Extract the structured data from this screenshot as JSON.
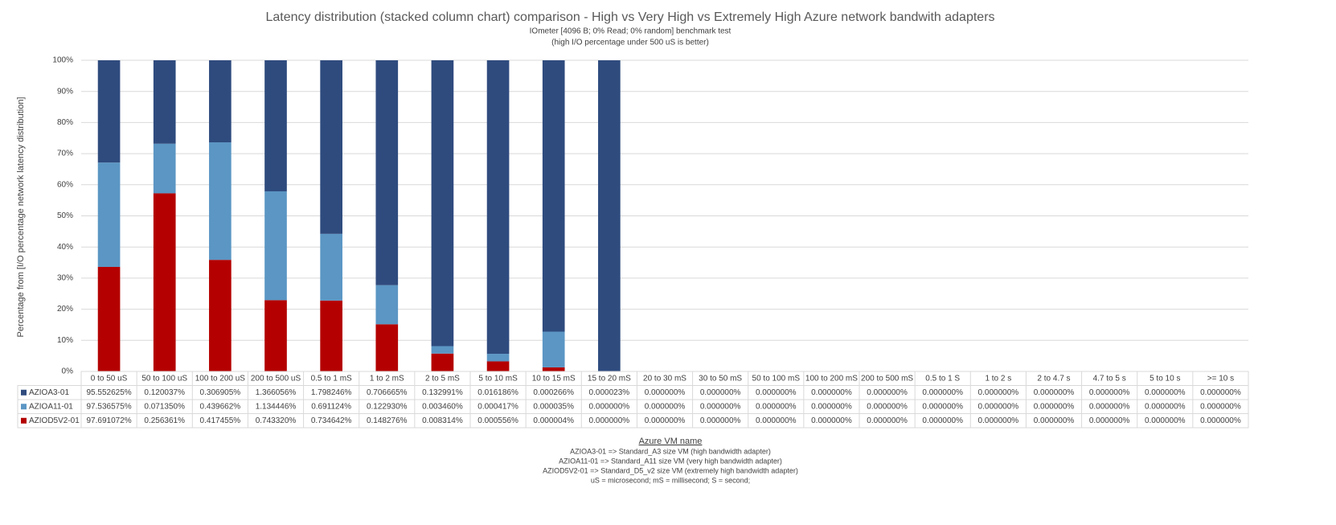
{
  "chart_data": {
    "type": "bar",
    "stacked_percent": true,
    "title": "Latency distribution (stacked column chart) comparison - High vs Very High vs Extremely High Azure network  bandwith adapters",
    "subtitle": [
      "IOmeter [4096 B; 0% Read; 0% random] benchmark test",
      "(high I/O percentage under 500 uS is better)"
    ],
    "y_label": "Percentage from [I/O percentage network latency distribution]",
    "x_label": "Azure VM name",
    "notes": [
      "AZIOA3-01 => Standard_A3 size VM (high bandwidth adapter)",
      "AZIOA11-01 => Standard_A11 size VM (very high bandwidth adapter)",
      "AZIOD5V2-01 => Standard_D5_v2 size VM (extremely high bandwidth adapter)",
      "uS = microsecond; mS = millisecond; S = second;"
    ],
    "categories": [
      "0 to 50 uS",
      "50 to 100 uS",
      "100 to 200 uS",
      "200 to 500 uS",
      "0.5 to 1 mS",
      "1 to 2 mS",
      "2 to 5 mS",
      "5 to 10 mS",
      "10 to 15 mS",
      "15 to 20 mS",
      "20 to 30 mS",
      "30 to 50 mS",
      "50 to 100 mS",
      "100 to 200 mS",
      "200 to 500 mS",
      "0.5 to 1 S",
      "1 to 2 s",
      "2 to 4.7 s",
      "4.7 to 5 s",
      "5 to 10 s",
      ">= 10 s"
    ],
    "ylim": [
      0,
      100
    ],
    "yticks": [
      {
        "value": 0,
        "label": "0%"
      },
      {
        "value": 10,
        "label": "10%"
      },
      {
        "value": 20,
        "label": "20%"
      },
      {
        "value": 30,
        "label": "30%"
      },
      {
        "value": 40,
        "label": "40%"
      },
      {
        "value": 50,
        "label": "50%"
      },
      {
        "value": 60,
        "label": "60%"
      },
      {
        "value": 70,
        "label": "70%"
      },
      {
        "value": 80,
        "label": "80%"
      },
      {
        "value": 90,
        "label": "90%"
      },
      {
        "value": 100,
        "label": "100%"
      }
    ],
    "grid": true,
    "series": [
      {
        "name": "AZIOA3-01",
        "color": "#2f4b7e",
        "values": [
          95.552625,
          0.120037,
          0.306905,
          1.366056,
          1.798246,
          0.706665,
          0.132991,
          0.016186,
          0.000266,
          2.3e-05,
          0,
          0,
          0,
          0,
          0,
          0,
          0,
          0,
          0,
          0,
          0
        ],
        "value_labels": [
          "95.552625%",
          "0.120037%",
          "0.306905%",
          "1.366056%",
          "1.798246%",
          "0.706665%",
          "0.132991%",
          "0.016186%",
          "0.000266%",
          "0.000023%",
          "0.000000%",
          "0.000000%",
          "0.000000%",
          "0.000000%",
          "0.000000%",
          "0.000000%",
          "0.000000%",
          "0.000000%",
          "0.000000%",
          "0.000000%",
          "0.000000%"
        ]
      },
      {
        "name": "AZIOA11-01",
        "color": "#5b96c4",
        "values": [
          97.536575,
          0.07135,
          0.439662,
          1.134446,
          0.691124,
          0.12293,
          0.00346,
          0.000417,
          3.5e-05,
          0,
          0,
          0,
          0,
          0,
          0,
          0,
          0,
          0,
          0,
          0,
          0
        ],
        "value_labels": [
          "97.536575%",
          "0.071350%",
          "0.439662%",
          "1.134446%",
          "0.691124%",
          "0.122930%",
          "0.003460%",
          "0.000417%",
          "0.000035%",
          "0.000000%",
          "0.000000%",
          "0.000000%",
          "0.000000%",
          "0.000000%",
          "0.000000%",
          "0.000000%",
          "0.000000%",
          "0.000000%",
          "0.000000%",
          "0.000000%",
          "0.000000%"
        ]
      },
      {
        "name": "AZIOD5V2-01",
        "color": "#b40000",
        "values": [
          97.691072,
          0.256361,
          0.417455,
          0.74332,
          0.734642,
          0.148276,
          0.008314,
          0.000556,
          4e-06,
          0,
          0,
          0,
          0,
          0,
          0,
          0,
          0,
          0,
          0,
          0,
          0
        ],
        "value_labels": [
          "97.691072%",
          "0.256361%",
          "0.417455%",
          "0.743320%",
          "0.734642%",
          "0.148276%",
          "0.008314%",
          "0.000556%",
          "0.000004%",
          "0.000000%",
          "0.000000%",
          "0.000000%",
          "0.000000%",
          "0.000000%",
          "0.000000%",
          "0.000000%",
          "0.000000%",
          "0.000000%",
          "0.000000%",
          "0.000000%",
          "0.000000%"
        ]
      }
    ]
  }
}
